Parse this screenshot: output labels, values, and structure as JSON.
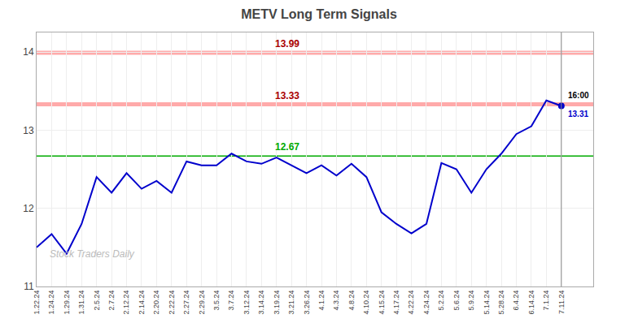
{
  "chart_data": {
    "type": "line",
    "title": "METV Long Term Signals",
    "categories": [
      "1.22.24",
      "1.24.24",
      "1.29.24",
      "1.31.24",
      "2.5.24",
      "2.7.24",
      "2.12.24",
      "2.14.24",
      "2.20.24",
      "2.22.24",
      "2.27.24",
      "2.29.24",
      "3.5.24",
      "3.7.24",
      "3.12.24",
      "3.14.24",
      "3.19.24",
      "3.21.24",
      "3.26.24",
      "4.1.24",
      "4.3.24",
      "4.8.24",
      "4.10.24",
      "4.15.24",
      "4.17.24",
      "4.22.24",
      "4.24.24",
      "5.2.24",
      "5.6.24",
      "5.9.24",
      "5.14.24",
      "5.28.24",
      "6.4.24",
      "6.14.24",
      "7.1.24",
      "7.11.24"
    ],
    "values": [
      11.5,
      11.67,
      11.42,
      11.8,
      12.4,
      12.2,
      12.45,
      12.25,
      12.35,
      12.2,
      12.6,
      12.55,
      12.55,
      12.7,
      12.6,
      12.57,
      12.65,
      12.55,
      12.45,
      12.55,
      12.42,
      12.57,
      12.4,
      11.95,
      11.8,
      11.68,
      11.8,
      12.58,
      12.5,
      12.2,
      12.5,
      12.7,
      12.95,
      13.05,
      13.38,
      13.31
    ],
    "color": "#0000cc",
    "ylim": [
      11,
      14.25
    ],
    "yticks": [
      11,
      12,
      13,
      14
    ],
    "grid": true,
    "hlines": [
      {
        "value": 13.99,
        "label": "13.99",
        "color": "#ffaaaa",
        "label_color": "#aa0000"
      },
      {
        "value": 13.33,
        "label": "13.33",
        "color": "#ffaaaa",
        "label_color": "#aa0000"
      },
      {
        "value": 12.67,
        "label": "12.67",
        "color": "#00aa00",
        "label_color": "#00aa00"
      }
    ],
    "vline_color": "#888888",
    "annotations": [
      {
        "text": "16:00",
        "color": "#000000"
      },
      {
        "text": "13.31",
        "value": 13.31,
        "color": "#0000cc"
      },
      {
        "text": "Stock Traders Daily",
        "color": "#bbbbbb"
      }
    ]
  }
}
